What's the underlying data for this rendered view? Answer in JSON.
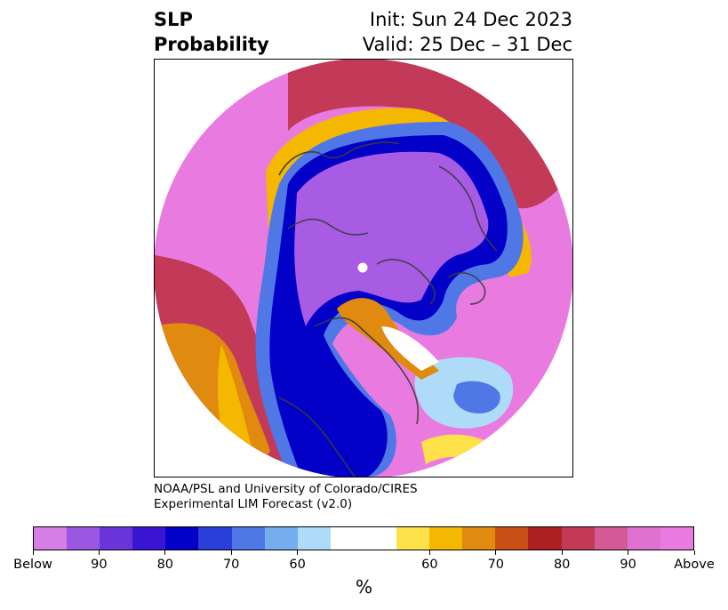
{
  "title": {
    "variable": "SLP",
    "product": "Probability",
    "init": "Init: Sun 24 Dec 2023",
    "valid": "Valid: 25 Dec – 31 Dec"
  },
  "credit": {
    "line1": "NOAA/PSL and University of Colorado/CIRES",
    "line2": "Experimental LIM Forecast (v2.0)"
  },
  "colorbar": {
    "unit": "%",
    "colors": [
      "#d57ee6",
      "#9a57e0",
      "#6a36d9",
      "#3a16d4",
      "#0300c8",
      "#2a3ed8",
      "#4f77e6",
      "#74aeef",
      "#aedcf8",
      "#ffffff",
      "#ffffff",
      "#ffe24a",
      "#f4b800",
      "#e08a10",
      "#c85016",
      "#ad2125",
      "#c23a57",
      "#d35a96",
      "#df72cf",
      "#e97be0"
    ],
    "tick_labels": [
      "Below",
      "90",
      "80",
      "70",
      "60",
      "60",
      "70",
      "80",
      "90",
      "Above"
    ]
  },
  "map": {
    "projection": "north-polar-stereographic",
    "legend_meaning": {
      "below": "purple/blue",
      "above": "pink/red/orange"
    }
  }
}
